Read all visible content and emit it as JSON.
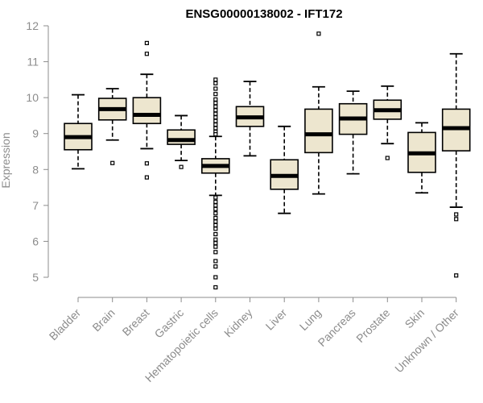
{
  "chart_data": {
    "type": "boxplot",
    "title": "ENSG00000138002 - IFT172",
    "ylabel": "Expression",
    "ylim": [
      4.6,
      12.2
    ],
    "yticks": [
      5,
      6,
      7,
      8,
      9,
      10,
      11,
      12
    ],
    "categories": [
      "Bladder",
      "Brain",
      "Breast",
      "Gastric",
      "Hematopoietic cells",
      "Kidney",
      "Liver",
      "Lung",
      "Pancreas",
      "Prostate",
      "Skin",
      "Unknown / Other"
    ],
    "colors": {
      "box_fill": "#ede6cf",
      "box_stroke": "#000000",
      "median": "#000000",
      "axis": "#8c8c8c"
    },
    "boxes": [
      {
        "category": "Bladder",
        "whisker_low": 8.02,
        "q1": 8.55,
        "median": 8.9,
        "q3": 9.28,
        "whisker_high": 10.08,
        "outliers": []
      },
      {
        "category": "Brain",
        "whisker_low": 8.82,
        "q1": 9.38,
        "median": 9.68,
        "q3": 9.98,
        "whisker_high": 10.25,
        "outliers": [
          8.18
        ]
      },
      {
        "category": "Breast",
        "whisker_low": 8.58,
        "q1": 9.28,
        "median": 9.52,
        "q3": 10.0,
        "whisker_high": 10.65,
        "outliers": [
          11.52,
          11.22,
          8.17,
          7.78
        ]
      },
      {
        "category": "Gastric",
        "whisker_low": 8.25,
        "q1": 8.7,
        "median": 8.82,
        "q3": 9.1,
        "whisker_high": 9.5,
        "outliers": [
          8.07
        ]
      },
      {
        "category": "Hematopoietic cells",
        "whisker_low": 7.28,
        "q1": 7.9,
        "median": 8.1,
        "q3": 8.3,
        "whisker_high": 8.92,
        "outliers": [
          10.5,
          10.4,
          10.25,
          10.1,
          9.95,
          9.85,
          9.75,
          9.65,
          9.55,
          9.45,
          9.35,
          9.25,
          9.15,
          9.05,
          8.98,
          7.22,
          7.1,
          7.0,
          6.9,
          6.78,
          6.65,
          6.55,
          6.45,
          6.35,
          6.2,
          6.05,
          5.95,
          5.85,
          5.7,
          5.45,
          5.3,
          5.0,
          4.72
        ]
      },
      {
        "category": "Kidney",
        "whisker_low": 8.38,
        "q1": 9.2,
        "median": 9.45,
        "q3": 9.75,
        "whisker_high": 10.45,
        "outliers": []
      },
      {
        "category": "Liver",
        "whisker_low": 6.78,
        "q1": 7.45,
        "median": 7.82,
        "q3": 8.27,
        "whisker_high": 9.2,
        "outliers": []
      },
      {
        "category": "Lung",
        "whisker_low": 7.32,
        "q1": 8.47,
        "median": 8.98,
        "q3": 9.68,
        "whisker_high": 10.3,
        "outliers": [
          11.78
        ]
      },
      {
        "category": "Pancreas",
        "whisker_low": 7.88,
        "q1": 8.98,
        "median": 9.42,
        "q3": 9.83,
        "whisker_high": 10.18,
        "outliers": []
      },
      {
        "category": "Prostate",
        "whisker_low": 8.72,
        "q1": 9.4,
        "median": 9.65,
        "q3": 9.93,
        "whisker_high": 10.32,
        "outliers": [
          8.32
        ]
      },
      {
        "category": "Skin",
        "whisker_low": 7.35,
        "q1": 7.92,
        "median": 8.45,
        "q3": 9.03,
        "whisker_high": 9.3,
        "outliers": []
      },
      {
        "category": "Unknown / Other",
        "whisker_low": 6.95,
        "q1": 8.52,
        "median": 9.15,
        "q3": 9.68,
        "whisker_high": 11.22,
        "outliers": [
          6.75,
          6.62,
          5.05
        ]
      }
    ]
  }
}
